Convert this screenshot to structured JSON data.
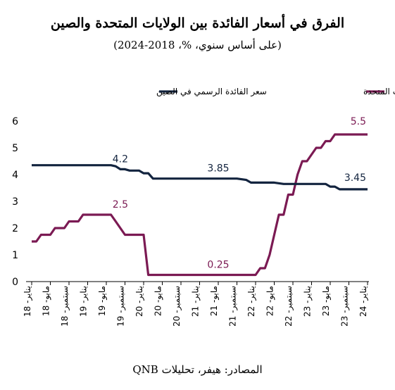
{
  "chart_data": {
    "type": "line",
    "title": "الفرق في أسعار الفائدة بين الولايات المتحدة والصين",
    "subtitle": "(على أساس سنوي، %، 2018-2024)",
    "source": "المصادر: هيفر، تحليلات QNB",
    "ylim": [
      0,
      6
    ],
    "yticks": [
      0,
      1,
      2,
      3,
      4,
      5,
      6
    ],
    "x_range": [
      0,
      72
    ],
    "x_ticks": [
      {
        "x": 0,
        "label": "يناير- 18"
      },
      {
        "x": 4,
        "label": "مايو- 18"
      },
      {
        "x": 8,
        "label": "سبتمبر- 18"
      },
      {
        "x": 12,
        "label": "يناير- 19"
      },
      {
        "x": 16,
        "label": "مايو- 19"
      },
      {
        "x": 20,
        "label": "سبتمبر- 19"
      },
      {
        "x": 24,
        "label": "يناير- 20"
      },
      {
        "x": 28,
        "label": "مايو- 20"
      },
      {
        "x": 32,
        "label": "سبتمبر- 20"
      },
      {
        "x": 36,
        "label": "يناير- 21"
      },
      {
        "x": 40,
        "label": "مايو- 21"
      },
      {
        "x": 44,
        "label": "سبتمبر- 21"
      },
      {
        "x": 48,
        "label": "يناير- 22"
      },
      {
        "x": 52,
        "label": "مايو- 22"
      },
      {
        "x": 56,
        "label": "سبتمبر- 22"
      },
      {
        "x": 60,
        "label": "يناير- 23"
      },
      {
        "x": 64,
        "label": "مايو- 23"
      },
      {
        "x": 68,
        "label": "سبتمبر- 23"
      },
      {
        "x": 72,
        "label": "يناير- 24"
      }
    ],
    "legend_position": "top",
    "series": [
      {
        "name": "سعر الفائدة الرسمي في الولايات المتحدة",
        "color": "#7b1a53",
        "points": [
          [
            0,
            1.5
          ],
          [
            0.5,
            1.5
          ],
          [
            1,
            1.5
          ],
          [
            2,
            1.75
          ],
          [
            3,
            1.75
          ],
          [
            4,
            1.75
          ],
          [
            5,
            2.0
          ],
          [
            6,
            2.0
          ],
          [
            7,
            2.0
          ],
          [
            8,
            2.25
          ],
          [
            9,
            2.25
          ],
          [
            10,
            2.25
          ],
          [
            11,
            2.5
          ],
          [
            12,
            2.5
          ],
          [
            13,
            2.5
          ],
          [
            14,
            2.5
          ],
          [
            15,
            2.5
          ],
          [
            16,
            2.5
          ],
          [
            17,
            2.5
          ],
          [
            18,
            2.25
          ],
          [
            19,
            2.0
          ],
          [
            20,
            1.75
          ],
          [
            21,
            1.75
          ],
          [
            22,
            1.75
          ],
          [
            23,
            1.75
          ],
          [
            24,
            1.75
          ],
          [
            25,
            0.25
          ],
          [
            26,
            0.25
          ],
          [
            30,
            0.25
          ],
          [
            35,
            0.25
          ],
          [
            40,
            0.25
          ],
          [
            45,
            0.25
          ],
          [
            48,
            0.25
          ],
          [
            49,
            0.5
          ],
          [
            50,
            0.5
          ],
          [
            51,
            1.0
          ],
          [
            52,
            1.75
          ],
          [
            53,
            2.5
          ],
          [
            54,
            2.5
          ],
          [
            55,
            3.25
          ],
          [
            56,
            3.25
          ],
          [
            57,
            4.0
          ],
          [
            58,
            4.5
          ],
          [
            59,
            4.5
          ],
          [
            60,
            4.75
          ],
          [
            61,
            5.0
          ],
          [
            62,
            5.0
          ],
          [
            63,
            5.25
          ],
          [
            64,
            5.25
          ],
          [
            65,
            5.5
          ],
          [
            66,
            5.5
          ],
          [
            67,
            5.5
          ],
          [
            68,
            5.5
          ],
          [
            69,
            5.5
          ],
          [
            70,
            5.5
          ],
          [
            71,
            5.5
          ],
          [
            72,
            5.5
          ]
        ]
      },
      {
        "name": "سعر الفائدة الرسمي في الصين",
        "color": "#13243f",
        "points": [
          [
            0,
            4.35
          ],
          [
            5,
            4.35
          ],
          [
            10,
            4.35
          ],
          [
            15,
            4.35
          ],
          [
            17,
            4.35
          ],
          [
            18,
            4.31
          ],
          [
            19,
            4.2
          ],
          [
            20,
            4.2
          ],
          [
            21,
            4.15
          ],
          [
            22,
            4.15
          ],
          [
            23,
            4.15
          ],
          [
            24,
            4.05
          ],
          [
            25,
            4.05
          ],
          [
            26,
            3.85
          ],
          [
            28,
            3.85
          ],
          [
            30,
            3.85
          ],
          [
            35,
            3.85
          ],
          [
            40,
            3.85
          ],
          [
            44,
            3.85
          ],
          [
            46,
            3.8
          ],
          [
            47,
            3.7
          ],
          [
            50,
            3.7
          ],
          [
            52,
            3.7
          ],
          [
            54,
            3.65
          ],
          [
            56,
            3.65
          ],
          [
            58,
            3.65
          ],
          [
            60,
            3.65
          ],
          [
            63,
            3.65
          ],
          [
            64,
            3.55
          ],
          [
            65,
            3.55
          ],
          [
            66,
            3.45
          ],
          [
            68,
            3.45
          ],
          [
            72,
            3.45
          ]
        ]
      }
    ],
    "annotations": [
      {
        "text": "4.2",
        "x": 19,
        "y": 4.2,
        "series": 1
      },
      {
        "text": "3.85",
        "x": 40,
        "y": 3.85,
        "series": 1
      },
      {
        "text": "3.45",
        "x": 72,
        "y": 3.45,
        "series": 1
      },
      {
        "text": "2.5",
        "x": 19,
        "y": 2.5,
        "series": 0
      },
      {
        "text": "0.25",
        "x": 40,
        "y": 0.25,
        "series": 0
      },
      {
        "text": "5.5",
        "x": 72,
        "y": 5.5,
        "series": 0
      }
    ]
  }
}
